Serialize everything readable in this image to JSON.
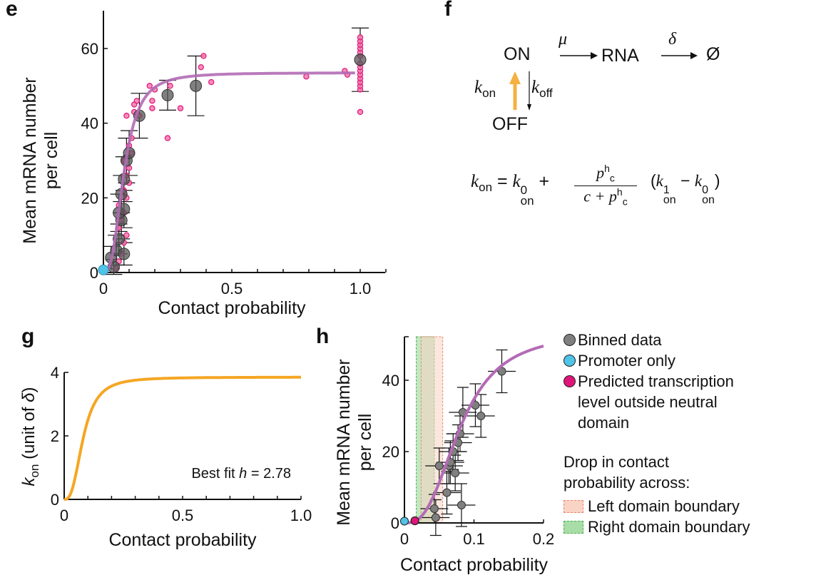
{
  "panels": {
    "e": {
      "letter": "e"
    },
    "f": {
      "letter": "f"
    },
    "g": {
      "letter": "g"
    },
    "h": {
      "letter": "h"
    }
  },
  "diagram_f": {
    "on_label": "ON",
    "off_label": "OFF",
    "rna_label": "RNA",
    "empty_label": "Ø",
    "mu_label": "μ",
    "delta_label": "δ",
    "kon_label": "k",
    "kon_sub": "on",
    "koff_label": "k",
    "koff_sub": "off",
    "kon_arrow_color": "#F5B041",
    "equation": {
      "lhs": "k",
      "lhs_sub": "on",
      "eq": "=",
      "k0": "k",
      "k0_sup": "0",
      "k0_sub": "on",
      "plus": "+",
      "num_p": "p",
      "num_sup": "h",
      "num_sub": "c",
      "den": "c + ",
      "den_p": "p",
      "den_sup": "h",
      "den_sub": "c",
      "paren_open": "(",
      "k1": "k",
      "k1_sup": "1",
      "k1_sub": "on",
      "minus": "−",
      "k0b": "k",
      "k0b_sup": "0",
      "k0b_sub": "on",
      "paren_close": ")"
    }
  },
  "legend_h": {
    "items": [
      {
        "label": "Binned data",
        "color": "#7f7f7f"
      },
      {
        "label": "Promoter only",
        "color": "#4FC3E8"
      },
      {
        "label": "Predicted transcription\nlevel outside neutral\ndomain",
        "color": "#E0157A"
      }
    ],
    "drop_title": "Drop in contact\nprobability across:",
    "boxes": [
      {
        "label": "Left domain boundary",
        "fill": "#F9D3C4",
        "border": "#E8896B"
      },
      {
        "label": "Right domain boundary",
        "fill": "#A8DDA8",
        "border": "#4CAF50"
      }
    ]
  },
  "chart_data": [
    {
      "id": "e",
      "type": "scatter",
      "title": "",
      "xlabel": "Contact probability",
      "ylabel": "Mean mRNA number\nper cell",
      "xlim": [
        0,
        1.1
      ],
      "ylim": [
        0,
        70
      ],
      "xticks": [
        0,
        0.5,
        1.0
      ],
      "xtick_labels": [
        "0",
        "0.5",
        "1.0"
      ],
      "yticks": [
        0,
        20,
        40,
        60
      ],
      "ytick_labels": [
        "0",
        "20",
        "40",
        "60"
      ],
      "colors": {
        "binned": "#555555",
        "raw": "#E0157A",
        "fit": "#B36BB5",
        "promoter": "#4FC3E8"
      },
      "series": [
        {
          "name": "Raw data",
          "points": [
            [
              0.05,
              1
            ],
            [
              0.06,
              3
            ],
            [
              0.07,
              5
            ],
            [
              0.08,
              8
            ],
            [
              0.09,
              10
            ],
            [
              0.06,
              12
            ],
            [
              0.07,
              14
            ],
            [
              0.08,
              16
            ],
            [
              0.06,
              18
            ],
            [
              0.09,
              20
            ],
            [
              0.08,
              22
            ],
            [
              0.1,
              24
            ],
            [
              0.09,
              26
            ],
            [
              0.1,
              28
            ],
            [
              0.08,
              30
            ],
            [
              0.11,
              32
            ],
            [
              0.1,
              34
            ],
            [
              0.11,
              36
            ],
            [
              0.09,
              42
            ],
            [
              0.12,
              43
            ],
            [
              0.12,
              45
            ],
            [
              0.13,
              46
            ],
            [
              0.14,
              42
            ],
            [
              0.18,
              50
            ],
            [
              0.2,
              49
            ],
            [
              0.19,
              46
            ],
            [
              0.19,
              44
            ],
            [
              0.25,
              36
            ],
            [
              0.26,
              50
            ],
            [
              0.3,
              44
            ],
            [
              0.38,
              55
            ],
            [
              0.39,
              58
            ],
            [
              0.42,
              51
            ],
            [
              0.79,
              52.5
            ],
            [
              0.94,
              54
            ],
            [
              0.95,
              53
            ],
            [
              1.0,
              43
            ],
            [
              1.0,
              49
            ],
            [
              1.0,
              50
            ],
            [
              1.0,
              51
            ],
            [
              1.0,
              52
            ],
            [
              1.0,
              53
            ],
            [
              1.0,
              54
            ],
            [
              1.0,
              55
            ],
            [
              1.0,
              56
            ],
            [
              1.0,
              58
            ],
            [
              1.0,
              59
            ],
            [
              1.0,
              60
            ],
            [
              1.0,
              61
            ],
            [
              1.0,
              62
            ],
            [
              1.0,
              63
            ]
          ]
        },
        {
          "name": "Binned data",
          "points": [
            [
              0.04,
              1.5,
              2
            ],
            [
              0.03,
              4,
              3
            ],
            [
              0.05,
              6,
              4
            ],
            [
              0.08,
              5,
              3
            ],
            [
              0.06,
              9,
              4
            ],
            [
              0.07,
              14,
              5
            ],
            [
              0.06,
              16,
              5
            ],
            [
              0.08,
              17,
              5
            ],
            [
              0.07,
              21,
              5
            ],
            [
              0.08,
              25,
              6
            ],
            [
              0.09,
              30,
              6
            ],
            [
              0.1,
              32,
              6
            ],
            [
              0.14,
              42,
              6
            ],
            [
              0.25,
              47.5,
              4
            ],
            [
              0.36,
              50,
              8
            ],
            [
              1.0,
              57,
              8.5
            ]
          ]
        },
        {
          "name": "Promoter only",
          "points": [
            [
              0,
              0.7
            ]
          ]
        },
        {
          "name": "Fit",
          "hill": {
            "ymax": 53.5,
            "c": 0.0009,
            "h": 2.78
          }
        }
      ]
    },
    {
      "id": "g",
      "type": "line",
      "xlabel": "Contact probability",
      "ylabel": "k_on (unit of δ)",
      "xlim": [
        0,
        1.0
      ],
      "ylim": [
        0,
        4
      ],
      "xticks": [
        0,
        0.5,
        1.0
      ],
      "xtick_labels": [
        "0",
        "0.5",
        "1.0"
      ],
      "yticks": [
        0,
        2,
        4
      ],
      "ytick_labels": [
        "0",
        "2",
        "4"
      ],
      "annotation": "Best fit h = 2.78",
      "annotation_prefix": "Best fit ",
      "annotation_var": "h",
      "annotation_suffix": " = 2.78",
      "color": "#F5A623",
      "series": [
        {
          "name": "k_on",
          "hill": {
            "ymax": 3.85,
            "c": 0.0009,
            "h": 2.78
          }
        }
      ]
    },
    {
      "id": "h",
      "type": "scatter",
      "xlabel": "Contact probability",
      "ylabel": "Mean mRNA number\nper cell",
      "xlim": [
        0,
        0.2
      ],
      "ylim": [
        0,
        52
      ],
      "xticks": [
        0,
        0.1,
        0.2
      ],
      "xtick_labels": [
        "0",
        "0.1",
        "0.2"
      ],
      "yticks": [
        0,
        20,
        40
      ],
      "ytick_labels": [
        "0",
        "20",
        "40"
      ],
      "bands": [
        {
          "name": "Right domain boundary",
          "x": [
            0.017,
            0.043
          ],
          "fill": "#A8DDA8",
          "border": "#4CAF50"
        },
        {
          "name": "Left domain boundary",
          "x": [
            0.024,
            0.055
          ],
          "fill": "#F9D3C4",
          "border": "#E8896B"
        }
      ],
      "series": [
        {
          "name": "Binned data",
          "color": "#7f7f7f",
          "points": [
            [
              0.045,
              1.5,
              0.02,
              5
            ],
            [
              0.043,
              4,
              0.02,
              4
            ],
            [
              0.082,
              5,
              0.02,
              6
            ],
            [
              0.061,
              8.5,
              0.02,
              6
            ],
            [
              0.05,
              16,
              0.02,
              5
            ],
            [
              0.073,
              14,
              0.02,
              5
            ],
            [
              0.064,
              16,
              0.02,
              5
            ],
            [
              0.066,
              17,
              0.02,
              6
            ],
            [
              0.07,
              20,
              0.02,
              5
            ],
            [
              0.077,
              22.5,
              0.02,
              5
            ],
            [
              0.08,
              25,
              0.02,
              5
            ],
            [
              0.084,
              31,
              0.02,
              7
            ],
            [
              0.102,
              33,
              0.02,
              6
            ],
            [
              0.11,
              30,
              0.02,
              6
            ],
            [
              0.14,
              42.5,
              0.02,
              6
            ]
          ]
        },
        {
          "name": "Promoter only",
          "color": "#4FC3E8",
          "points": [
            [
              0,
              0.5
            ]
          ]
        },
        {
          "name": "Predicted transcription level outside neutral domain",
          "color": "#E0157A",
          "points": [
            [
              0.015,
              0.6
            ]
          ]
        },
        {
          "name": "Fit",
          "color": "#B36BB5",
          "hill": {
            "ymax": 53.5,
            "c": 0.0009,
            "h": 2.78
          }
        }
      ]
    }
  ]
}
